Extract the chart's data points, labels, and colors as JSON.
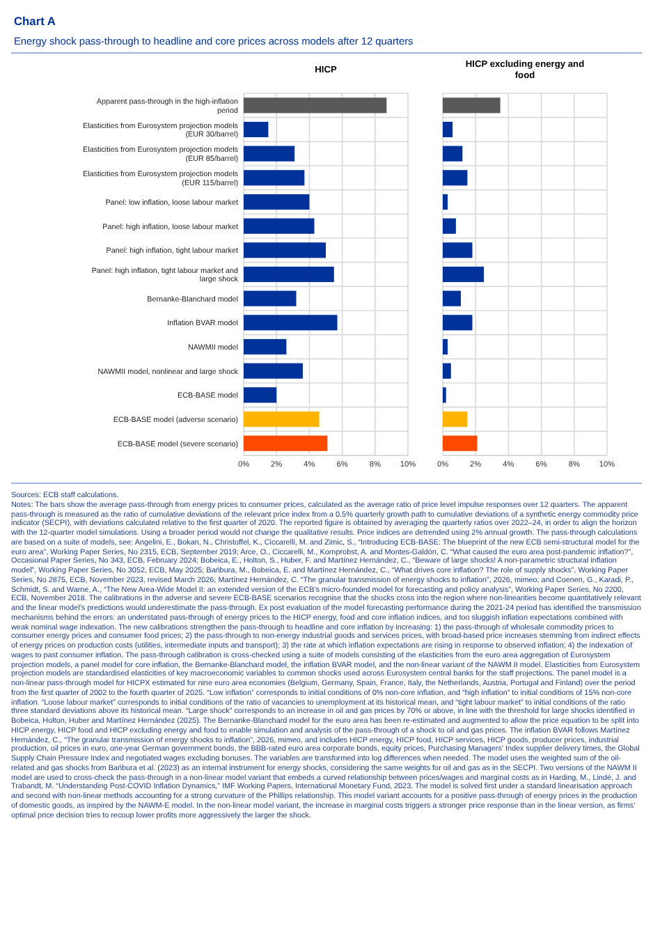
{
  "chart_data": [
    {
      "type": "bar",
      "orientation": "horizontal",
      "title": "HICP",
      "categories": [
        "Apparent pass-through in the high-inflation period",
        "Elasticities from Eurosystem projection models (EUR 30/barrel)",
        "Elasticities from Eurosystem projection models (EUR 85/barrel)",
        "Elasticities from Eurosystem projection models (EUR 115/barrel)",
        "Panel: low inflation, loose labour market",
        "Panel: high inflation, loose labour market",
        "Panel: high inflation, tight labour market",
        "Panel: high inflation, tight labour market and large shock",
        "Bernanke-Blanchard model",
        "Inflation BVAR model",
        "NAWMII model",
        "NAWMII model, nonlinear and large shock",
        "ECB-BASE model",
        "ECB-BASE model (adverse scenario)",
        "ECB-BASE model (severe scenario)"
      ],
      "values": [
        8.7,
        1.5,
        3.1,
        3.7,
        4.0,
        4.3,
        5.0,
        5.5,
        3.2,
        5.7,
        2.6,
        3.6,
        2.0,
        4.6,
        5.1
      ],
      "colors": [
        "#595959",
        "#003299",
        "#003299",
        "#003299",
        "#003299",
        "#003299",
        "#003299",
        "#003299",
        "#003299",
        "#003299",
        "#003299",
        "#003299",
        "#003299",
        "#ffb400",
        "#ff4b00"
      ],
      "xlim": [
        0,
        10
      ],
      "xticks": [
        {
          "value": 0,
          "label": "0%"
        },
        {
          "value": 2,
          "label": "2%"
        },
        {
          "value": 4,
          "label": "4%"
        },
        {
          "value": 6,
          "label": "6%"
        },
        {
          "value": 8,
          "label": "8%"
        },
        {
          "value": 10,
          "label": "10%"
        }
      ],
      "grid": true,
      "annotations": [
        "Chart A",
        "Energy shock pass-through to headline and core prices across models after 12 quarters",
        "Sources: ECB staff calculations.",
        "Notes: The bars show the average pass-through from energy prices to consumer prices, calculated as the average ratio of price level impulse responses over 12 quarters. The apparent pass-through is measured as the ratio of cumulative deviations of the relevant price index from a 0.5% quarterly growth path to cumulative deviations of a synthetic energy commodity price indicator (SECPI), with deviations calculated relative to the first quarter of 2020. The reported figure is obtained by averaging the quarterly ratios over 2022–24, in order to align the horizon with the 12-quarter model simulations. Using a broader period would not change the qualitative results. Price indices are detrended using 2% annual growth. The pass-through calculations are based on a suite of models, see: Angelini, E., Bokan, N., Christoffel, K., Ciccarelli, M. and Zimic, S., “Introducing ECB-BASE: The blueprint of the new ECB semi-structural model for the euro area”, Working Paper Series, No 2315, ECB, September 2019; Arce, O., Ciccarelli, M., Kornprobst, A. and Montes-Galdón, C. “What caused the euro area post-pandemic inflation?”, Occasional Paper Series, No 343, ECB, February 2024; Bobeica, E., Holton, S., Huber, F. and Martínez Hernández, C., “Beware of large shocks! A non-parametric structural inflation model”, Working Paper Series, No 3052, ECB, May 2025; Bańbura, M., Bobeica, E. and Martínez Hernández, C., “What drives core inflation? The role of supply shocks”, Working Paper Series, No 2875, ECB, November 2023, revised March 2026; Martínez Hernández, C. “The granular transmission of energy shocks to inflation”, 2026, mimeo; and Coenen, G., Karadi, P., Schmidt, S. and Warne, A., “The New Area-Wide Model II: an extended version of the ECB’s micro-founded model for forecasting and policy analysis”, Working Paper Series, No 2200, ECB, November 2018. The calibrations in the adverse and severe ECB-BASE scenarios recognise that the shocks cross into the region where non-linearities become quantitatively relevant and the linear model’s predictions would underestimate the pass-through. Ex post evaluation of the model forecasting performance during the 2021-24 period has identified the transmission mechanisms behind the errors: an understated pass-through of energy prices to the HICP energy, food and core inflation indices, and too sluggish inflation expectations combined with weak nominal wage indexation. The new calibrations strengthen the pass-through to headline and core inflation by increasing: 1) the pass-through of wholesale commodity prices to consumer energy prices and consumer food prices; 2) the pass-through to non-energy industrial goods and services prices, with broad-based price increases stemming from indirect effects of energy prices on production costs (utilities, intermediate inputs and transport); 3) the rate at which inflation expectations are rising in response to observed inflation; 4) the indexation of wages to past consumer inflation. The pass-through calibration is cross-checked using a suite of models consisting of the elasticities from the euro area aggregation of Eurosystem projection models, a panel model for core inflation, the Bernanke-Blanchard model, the inflation BVAR model, and the non-linear variant of the NAWM II model. Elasticities from Eurosystem projection models are standardised elasticities of key macroeconomic variables to common shocks used across Eurosystem central banks for the staff projections. The panel model is a non-linear pass-through model for HICPX estimated for nine euro area economies (Belgium, Germany, Spain, France, Italy, the Netherlands, Austria, Portugal and Finland) over the period from the first quarter of 2002 to the fourth quarter of 2025. “Low inflation” corresponds to initial conditions of 0% non-core inflation, and “high inflation” to initial conditions of 15% non-core inflation. “Loose labour market” corresponds to initial conditions of the ratio of vacancies to unemployment at its historical mean, and “tight labour market” to initial conditions of the ratio three standard deviations above its historical mean. “Large shock” corresponds to an increase in oil and gas prices by 70% or above, in line with the threshold for large shocks identified in Bobeica, Holton, Huber and Martínez Hernández (2025). The Bernanke-Blanchard model for the euro area has been re-estimated and augmented to allow the price equation to be split into HICP energy, HICP food and HICP excluding energy and food to enable simulation and analysis of the pass-through of a shock to oil and gas prices. The inflation BVAR follows Martínez Hernández, C., “The granular transmission of energy shocks to inflation”, 2026, mimeo, and includes HICP energy, HICP food, HICP services, HICP goods, producer prices, industrial production, oil prices in euro, one-year German government bonds, the BBB-rated euro area corporate bonds, equity prices, Purchasing Managers’ Index supplier delivery times, the Global Supply Chain Pressure Index and negotiated wages excluding bonuses. The variables are transformed into log differences when needed. The model uses the weighted sum of the oil-related and gas shocks from Bańbura et al. (2023) as an internal instrument for energy shocks, considering the same weights for oil and gas as in the SECPI. Two versions of the NAWM II model are used to cross-check the pass-through in a non-linear model variant that embeds a curved relationship between prices/wages and marginal costs as in Harding, M., Lindé, J. and Trabandt, M. “Understanding Post-COVID Inflation Dynamics,” IMF Working Papers, International Monetary Fund, 2023. The model is solved first under a standard linearisation approach and second with non-linear methods accounting for a strong curvature of the Phillips relationship. This model variant accounts for a positive pass-through of energy prices in the production of domestic goods, as inspired by the NAWM-E model. In the non-linear model variant, the increase in marginal costs triggers a stronger price response than in the linear version, as firms’ optimal price decision tries to recoup lower profits more aggressively the larger the shock."
      ]
    },
    {
      "type": "bar",
      "orientation": "horizontal",
      "title": "HICP excluding energy and food",
      "categories": [
        null,
        null,
        null,
        null,
        null,
        null,
        null,
        null,
        null,
        null,
        null,
        null,
        null,
        null,
        null
      ],
      "values": [
        3.5,
        0.6,
        1.2,
        1.5,
        0.3,
        0.8,
        1.8,
        2.5,
        1.1,
        1.8,
        0.3,
        0.5,
        0.2,
        1.5,
        2.1
      ],
      "colors": [
        "#595959",
        "#003299",
        "#003299",
        "#003299",
        "#003299",
        "#003299",
        "#003299",
        "#003299",
        "#003299",
        "#003299",
        "#003299",
        "#003299",
        "#003299",
        "#ffb400",
        "#ff4b00"
      ],
      "xlim": [
        0,
        10
      ],
      "xticks": [
        {
          "value": 0,
          "label": "0%"
        },
        {
          "value": 2,
          "label": "2%"
        },
        {
          "value": 4,
          "label": "4%"
        },
        {
          "value": 6,
          "label": "6%"
        },
        {
          "value": 8,
          "label": "8%"
        },
        {
          "value": 10,
          "label": "10%"
        }
      ],
      "grid": true,
      "tick_labels": "x"
    }
  ]
}
